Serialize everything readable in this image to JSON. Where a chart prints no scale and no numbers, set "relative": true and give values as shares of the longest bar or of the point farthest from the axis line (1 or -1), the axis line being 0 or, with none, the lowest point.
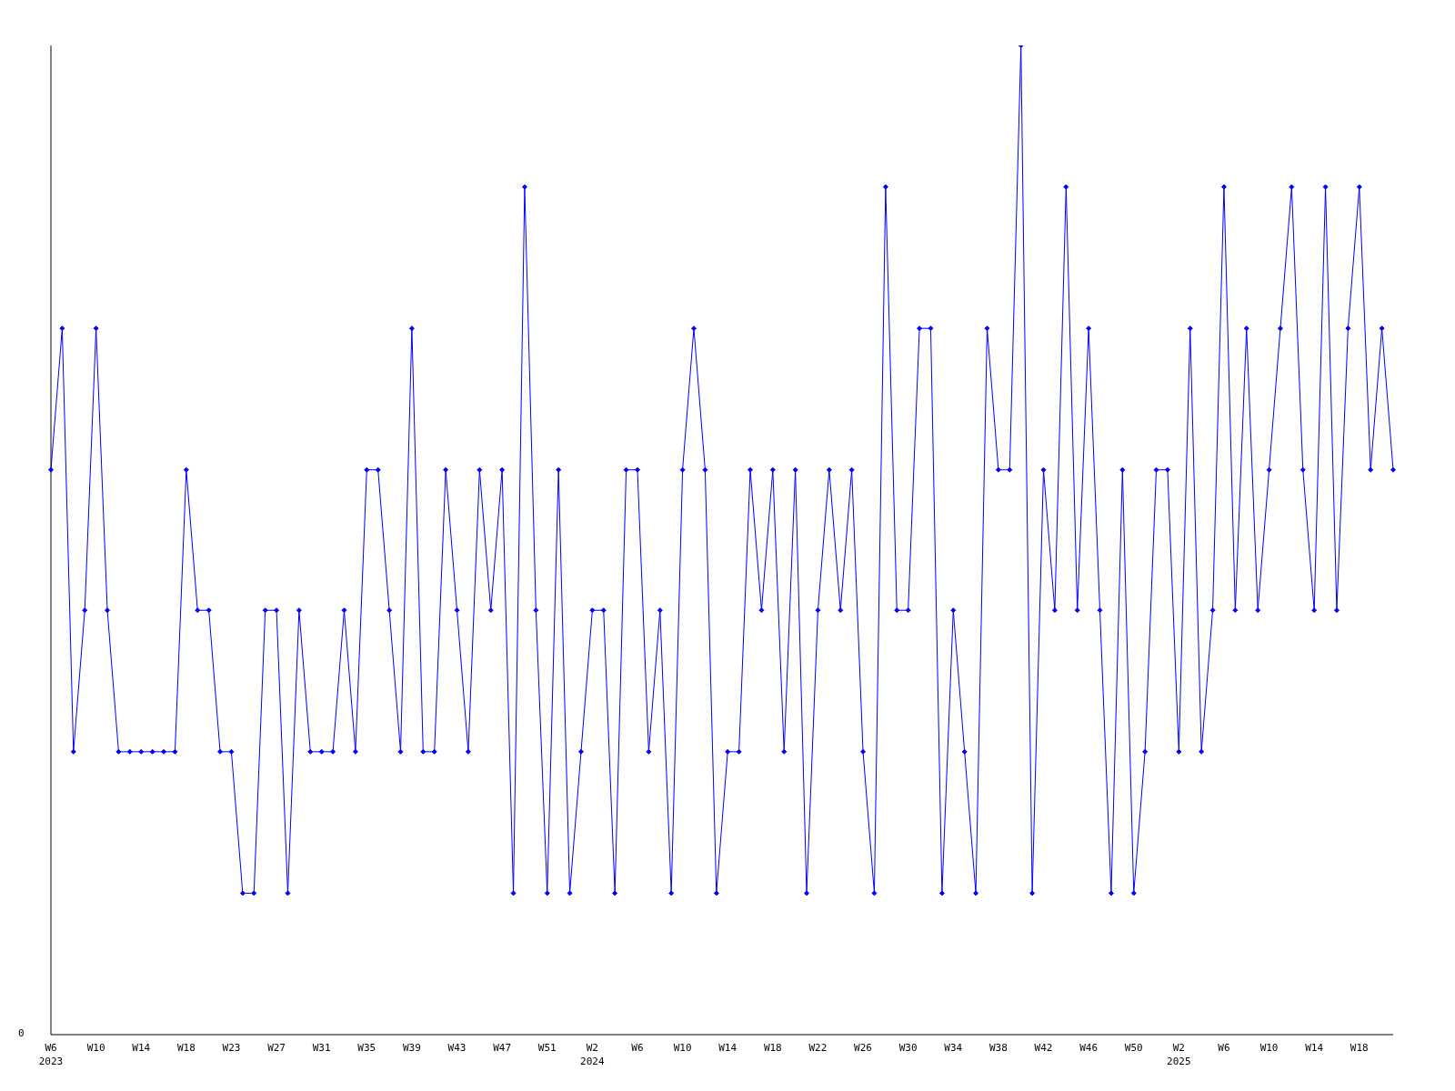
{
  "chart_data": {
    "type": "line",
    "relative": true,
    "annotations": [
      "0"
    ],
    "marker": "diamond",
    "grid": false,
    "legend": false,
    "categories": [
      "W6\n2023",
      null,
      null,
      null,
      "W10",
      null,
      null,
      null,
      "W14",
      null,
      null,
      null,
      "W18",
      null,
      null,
      null,
      "W23",
      null,
      null,
      null,
      "W27",
      null,
      null,
      null,
      "W31",
      null,
      null,
      null,
      "W35",
      null,
      null,
      null,
      "W39",
      null,
      null,
      null,
      "W43",
      null,
      null,
      null,
      "W47",
      null,
      null,
      null,
      "W51",
      null,
      null,
      null,
      "W2\n2024",
      null,
      null,
      null,
      "W6",
      null,
      null,
      null,
      "W10",
      null,
      null,
      null,
      "W14",
      null,
      null,
      null,
      "W18",
      null,
      null,
      null,
      "W22",
      null,
      null,
      null,
      "W26",
      null,
      null,
      null,
      "W30",
      null,
      null,
      null,
      "W34",
      null,
      null,
      null,
      "W38",
      null,
      null,
      null,
      "W42",
      null,
      null,
      null,
      "W46",
      null,
      null,
      null,
      "W50",
      null,
      null,
      null,
      "W2\n2025",
      null,
      null,
      null,
      "W6",
      null,
      null,
      null,
      "W10",
      null,
      null,
      null,
      "W14",
      null,
      null,
      null,
      "W18",
      null,
      null,
      null
    ],
    "series": [
      {
        "color": "#0000ff",
        "values": [
          0.571,
          0.714,
          0.286,
          0.429,
          0.714,
          0.429,
          0.286,
          0.286,
          0.286,
          0.286,
          0.286,
          0.286,
          0.571,
          0.429,
          0.429,
          0.286,
          0.286,
          0.143,
          0.143,
          0.429,
          0.429,
          0.143,
          0.429,
          0.286,
          0.286,
          0.286,
          0.429,
          0.286,
          0.571,
          0.571,
          0.429,
          0.286,
          0.714,
          0.286,
          0.286,
          0.571,
          0.429,
          0.286,
          0.571,
          0.429,
          0.571,
          0.143,
          0.857,
          0.429,
          0.143,
          0.571,
          0.143,
          0.286,
          0.429,
          0.429,
          0.143,
          0.571,
          0.571,
          0.286,
          0.429,
          0.143,
          0.571,
          0.714,
          0.571,
          0.143,
          0.286,
          0.286,
          0.571,
          0.429,
          0.571,
          0.286,
          0.571,
          0.143,
          0.429,
          0.571,
          0.429,
          0.571,
          0.286,
          0.143,
          0.857,
          0.429,
          0.429,
          0.714,
          0.714,
          0.143,
          0.429,
          0.286,
          0.143,
          0.714,
          0.571,
          0.571,
          1,
          0.143,
          0.571,
          0.429,
          0.857,
          0.429,
          0.714,
          0.429,
          0.143,
          0.571,
          0.143,
          0.286,
          0.571,
          0.571,
          0.286,
          0.714,
          0.286,
          0.429,
          0.857,
          0.429,
          0.714,
          0.429,
          0.571,
          0.714,
          0.857,
          0.571,
          0.429,
          0.857,
          0.429,
          0.714,
          0.857,
          0.571,
          0.714,
          0.571
        ]
      }
    ]
  }
}
